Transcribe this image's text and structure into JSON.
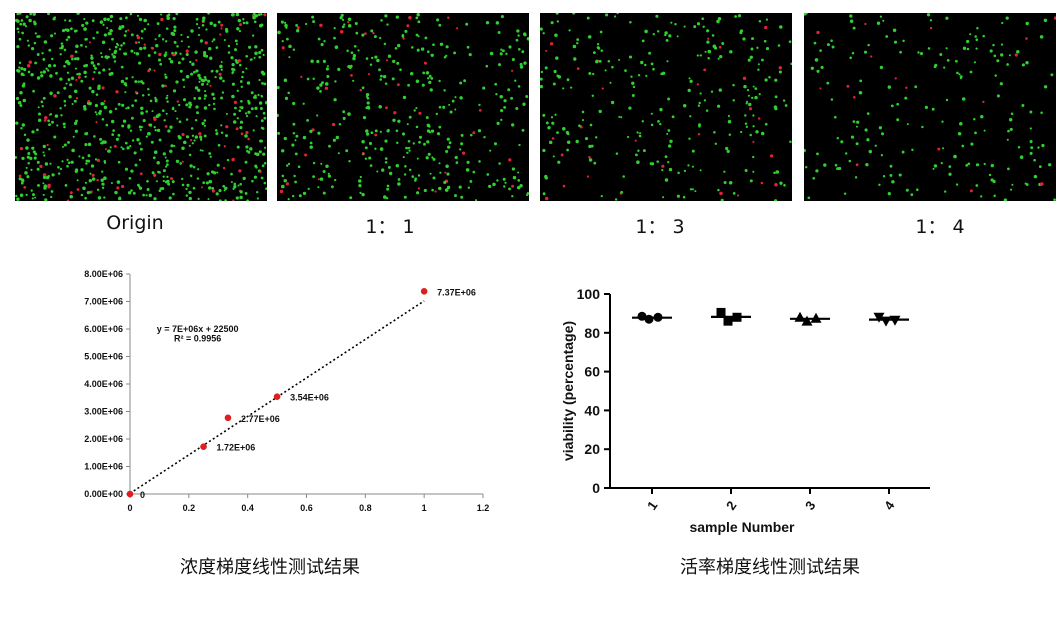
{
  "images": [
    {
      "label": "Origin",
      "density": 900,
      "red_fraction": 0.09
    },
    {
      "label": "1： 1",
      "density": 420,
      "red_fraction": 0.1
    },
    {
      "label": "1： 3",
      "density": 300,
      "red_fraction": 0.1
    },
    {
      "label": "1： 4",
      "density": 210,
      "red_fraction": 0.12
    }
  ],
  "colors": {
    "live_cell": "#2fd02f",
    "dead_cell": "#e0223a",
    "panel_background": "#000000",
    "point_red": "#e01e1e"
  },
  "captions": {
    "left": "浓度梯度线性测试结果",
    "right": "活率梯度线性测试结果"
  },
  "chart_data": [
    {
      "type": "scatter",
      "x": [
        0,
        0.25,
        0.333,
        0.5,
        1
      ],
      "y": [
        0,
        1720000,
        2770000,
        3540000,
        7370000
      ],
      "point_labels": [
        "0",
        "1.72E+06",
        "2.77E+06",
        "3.54E+06",
        "7.37E+06"
      ],
      "trendline": {
        "slope": 7000000,
        "intercept": 22500
      },
      "equation_text": "y = 7E+06x + 22500",
      "r2_text": "R² = 0.9956",
      "xlim": [
        0,
        1.2
      ],
      "ylim": [
        0,
        8000000
      ],
      "xticks": [
        "0",
        "0.2",
        "0.4",
        "0.6",
        "0.8",
        "1",
        "1.2"
      ],
      "yticks": [
        "0.00E+00",
        "1.00E+06",
        "2.00E+06",
        "3.00E+06",
        "4.00E+06",
        "5.00E+06",
        "6.00E+06",
        "7.00E+06",
        "8.00E+06"
      ],
      "grid": false
    },
    {
      "type": "scatter",
      "categories": [
        "1",
        "2",
        "3",
        "4"
      ],
      "markers": [
        "circle",
        "square",
        "triangle-up",
        "triangle-down"
      ],
      "series": [
        {
          "values": [
            88.5,
            87,
            88
          ]
        },
        {
          "values": [
            90.5,
            86,
            88
          ]
        },
        {
          "values": [
            88,
            86,
            87.5
          ]
        },
        {
          "values": [
            88,
            86,
            86.5
          ]
        }
      ],
      "means": [
        87.8,
        88.2,
        87.2,
        86.8
      ],
      "xlabel": "sample Number",
      "ylabel": "viability (percentage)",
      "ylim": [
        0,
        100
      ],
      "yticks": [
        "0",
        "20",
        "40",
        "60",
        "80",
        "100"
      ],
      "grid": false
    }
  ]
}
